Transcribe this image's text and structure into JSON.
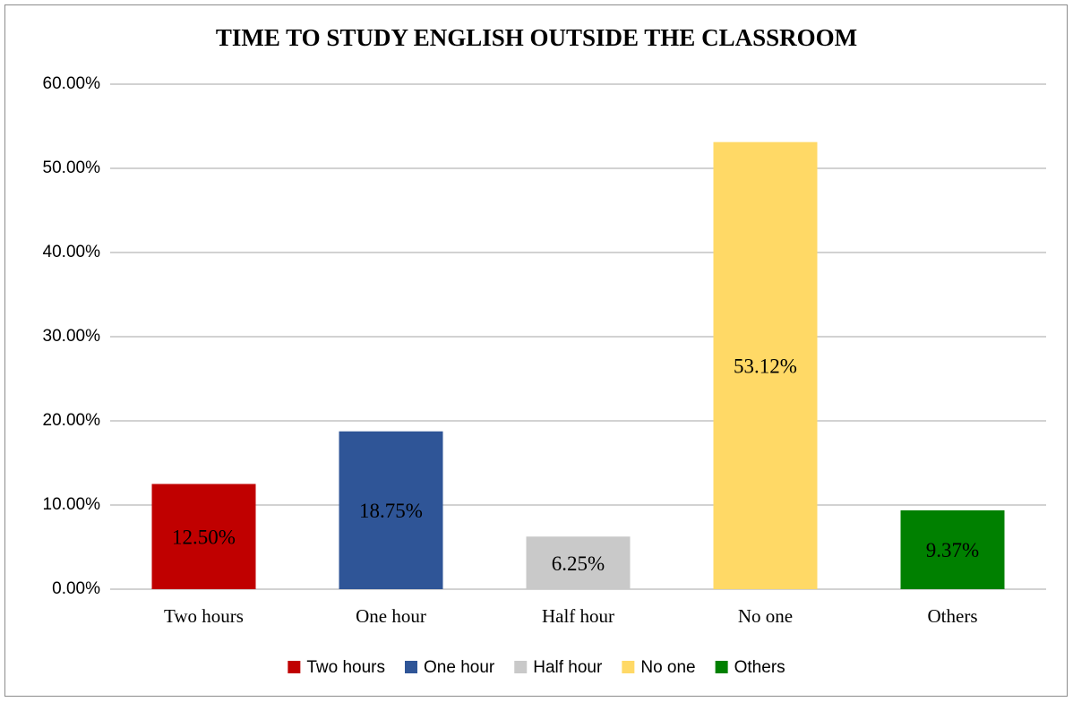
{
  "chart_data": {
    "type": "bar",
    "title": "TIME TO STUDY ENGLISH OUTSIDE THE CLASSROOM",
    "categories": [
      "Two hours",
      "One hour",
      "Half hour",
      "No one",
      "Others"
    ],
    "values": [
      12.5,
      18.75,
      6.25,
      53.12,
      9.37
    ],
    "value_labels": [
      "12.50%",
      "18.75%",
      "6.25%",
      "53.12%",
      "9.37%"
    ],
    "colors": [
      "#c00000",
      "#2f5597",
      "#c9c9c9",
      "#ffd966",
      "#008000"
    ],
    "ylim": [
      0,
      60
    ],
    "yticks": [
      {
        "value": 0,
        "label": "0.00%"
      },
      {
        "value": 10,
        "label": "10.00%"
      },
      {
        "value": 20,
        "label": "20.00%"
      },
      {
        "value": 30,
        "label": "30.00%"
      },
      {
        "value": 40,
        "label": "40.00%"
      },
      {
        "value": 50,
        "label": "50.00%"
      },
      {
        "value": 60,
        "label": "60.00%"
      }
    ],
    "grid": true,
    "legend": "bottom"
  }
}
